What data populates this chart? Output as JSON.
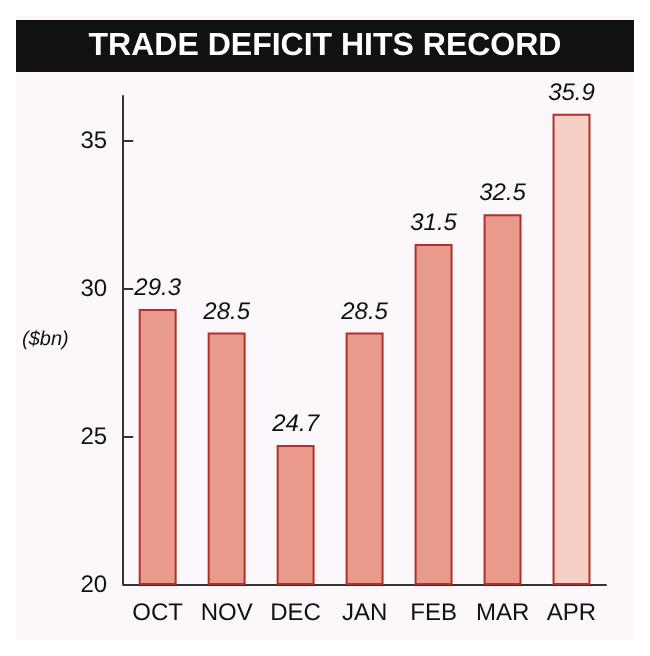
{
  "chart_data": {
    "type": "bar",
    "title": "TRADE DEFICIT HITS RECORD",
    "ylabel": "($bn)",
    "categories": [
      "OCT",
      "NOV",
      "DEC",
      "JAN",
      "FEB",
      "MAR",
      "APR"
    ],
    "values": [
      29.3,
      28.5,
      24.7,
      28.5,
      31.5,
      32.5,
      35.9
    ],
    "colors": [
      "#e89a8c",
      "#e89a8c",
      "#e89a8c",
      "#e89a8c",
      "#e89a8c",
      "#e89a8c",
      "#f6cfc6"
    ],
    "ylim": [
      20,
      36.5
    ],
    "yticks": [
      20,
      25,
      30,
      35
    ],
    "grid": false,
    "data_labels": true
  }
}
